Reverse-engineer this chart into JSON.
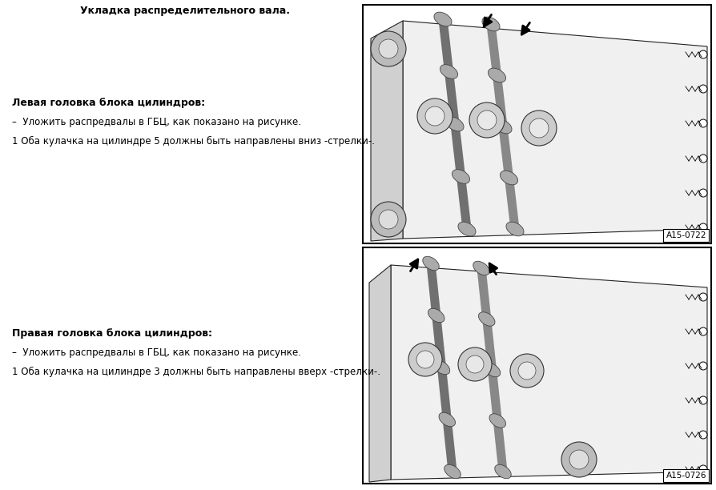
{
  "title_top": "Укладка распределительного вала.",
  "left_heading1": "Левая головка блока цилиндров:",
  "left_bullet1": "–  Уложить распредвалы в ГБЦ, как показано на рисунке.",
  "left_note1": "1 Оба кулачка на цилиндре 5 должны быть направлены вниз -стрелки-.",
  "image1_label": "A15-0722",
  "left_heading2": "Правая головка блока цилиндров:",
  "left_bullet2": "–  Уложить распредвалы в ГБЦ, как показано на рисунке.",
  "left_note2": "1 Оба кулачка на цилиндре 3 должны быть направлены вверх -стрелки-.",
  "image2_label": "A15-0726",
  "bg_color": "#ffffff",
  "text_color": "#000000",
  "box_color": "#000000",
  "font_size_heading": 9,
  "font_size_body": 8.5,
  "font_size_title": 9
}
